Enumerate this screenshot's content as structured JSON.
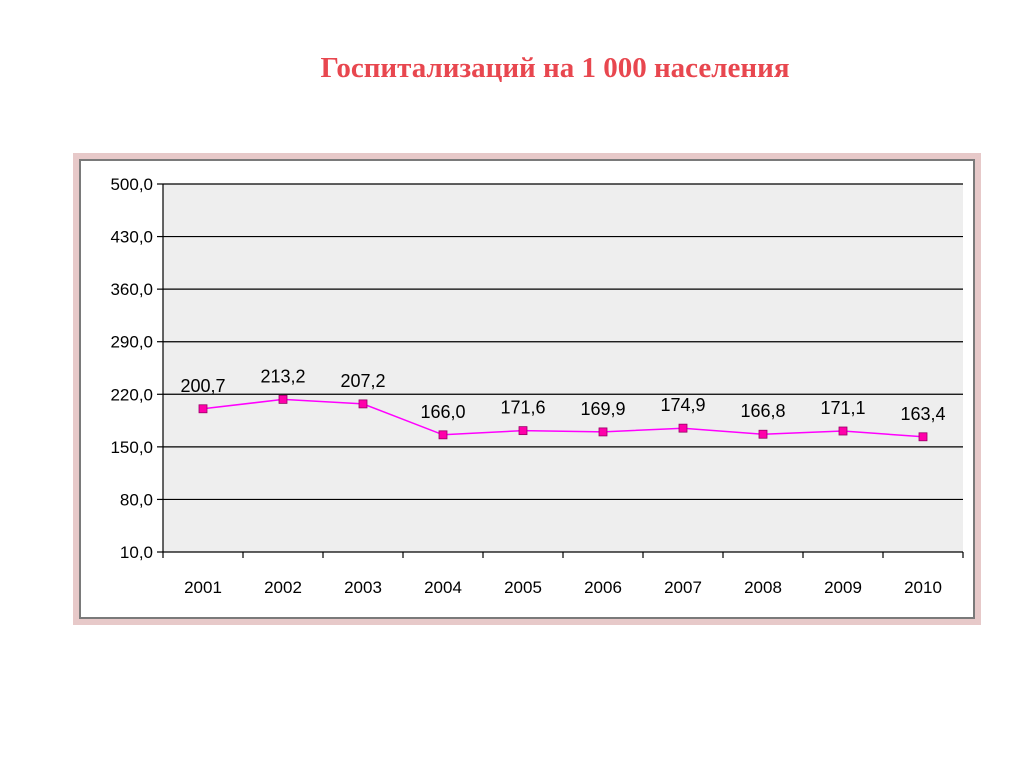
{
  "title": "Госпитализаций на 1 000 населения",
  "colors": {
    "title": "#e8474f",
    "line": "#ff00ff",
    "marker": "#ff00aa",
    "plot_bg": "#eeeeee",
    "frame": "#e7c9c9"
  },
  "chart_data": {
    "type": "line",
    "title": "Госпитализаций на 1 000 населения",
    "xlabel": "",
    "ylabel": "",
    "categories": [
      "2001",
      "2002",
      "2003",
      "2004",
      "2005",
      "2006",
      "2007",
      "2008",
      "2009",
      "2010"
    ],
    "series": [
      {
        "values": [
          200.7,
          213.2,
          207.2,
          166.0,
          171.6,
          169.9,
          174.9,
          166.8,
          171.1,
          163.4
        ],
        "labels": [
          "200,7",
          "213,2",
          "207,2",
          "166,0",
          "171,6",
          "169,9",
          "174,9",
          "166,8",
          "171,1",
          "163,4"
        ]
      }
    ],
    "ylim": [
      10,
      500
    ],
    "yticks": [
      10,
      80,
      150,
      220,
      290,
      360,
      430,
      500
    ],
    "ytick_labels": [
      "10,0",
      "80,0",
      "150,0",
      "220,0",
      "290,0",
      "360,0",
      "430,0",
      "500,0"
    ],
    "grid": true,
    "legend": "none"
  }
}
